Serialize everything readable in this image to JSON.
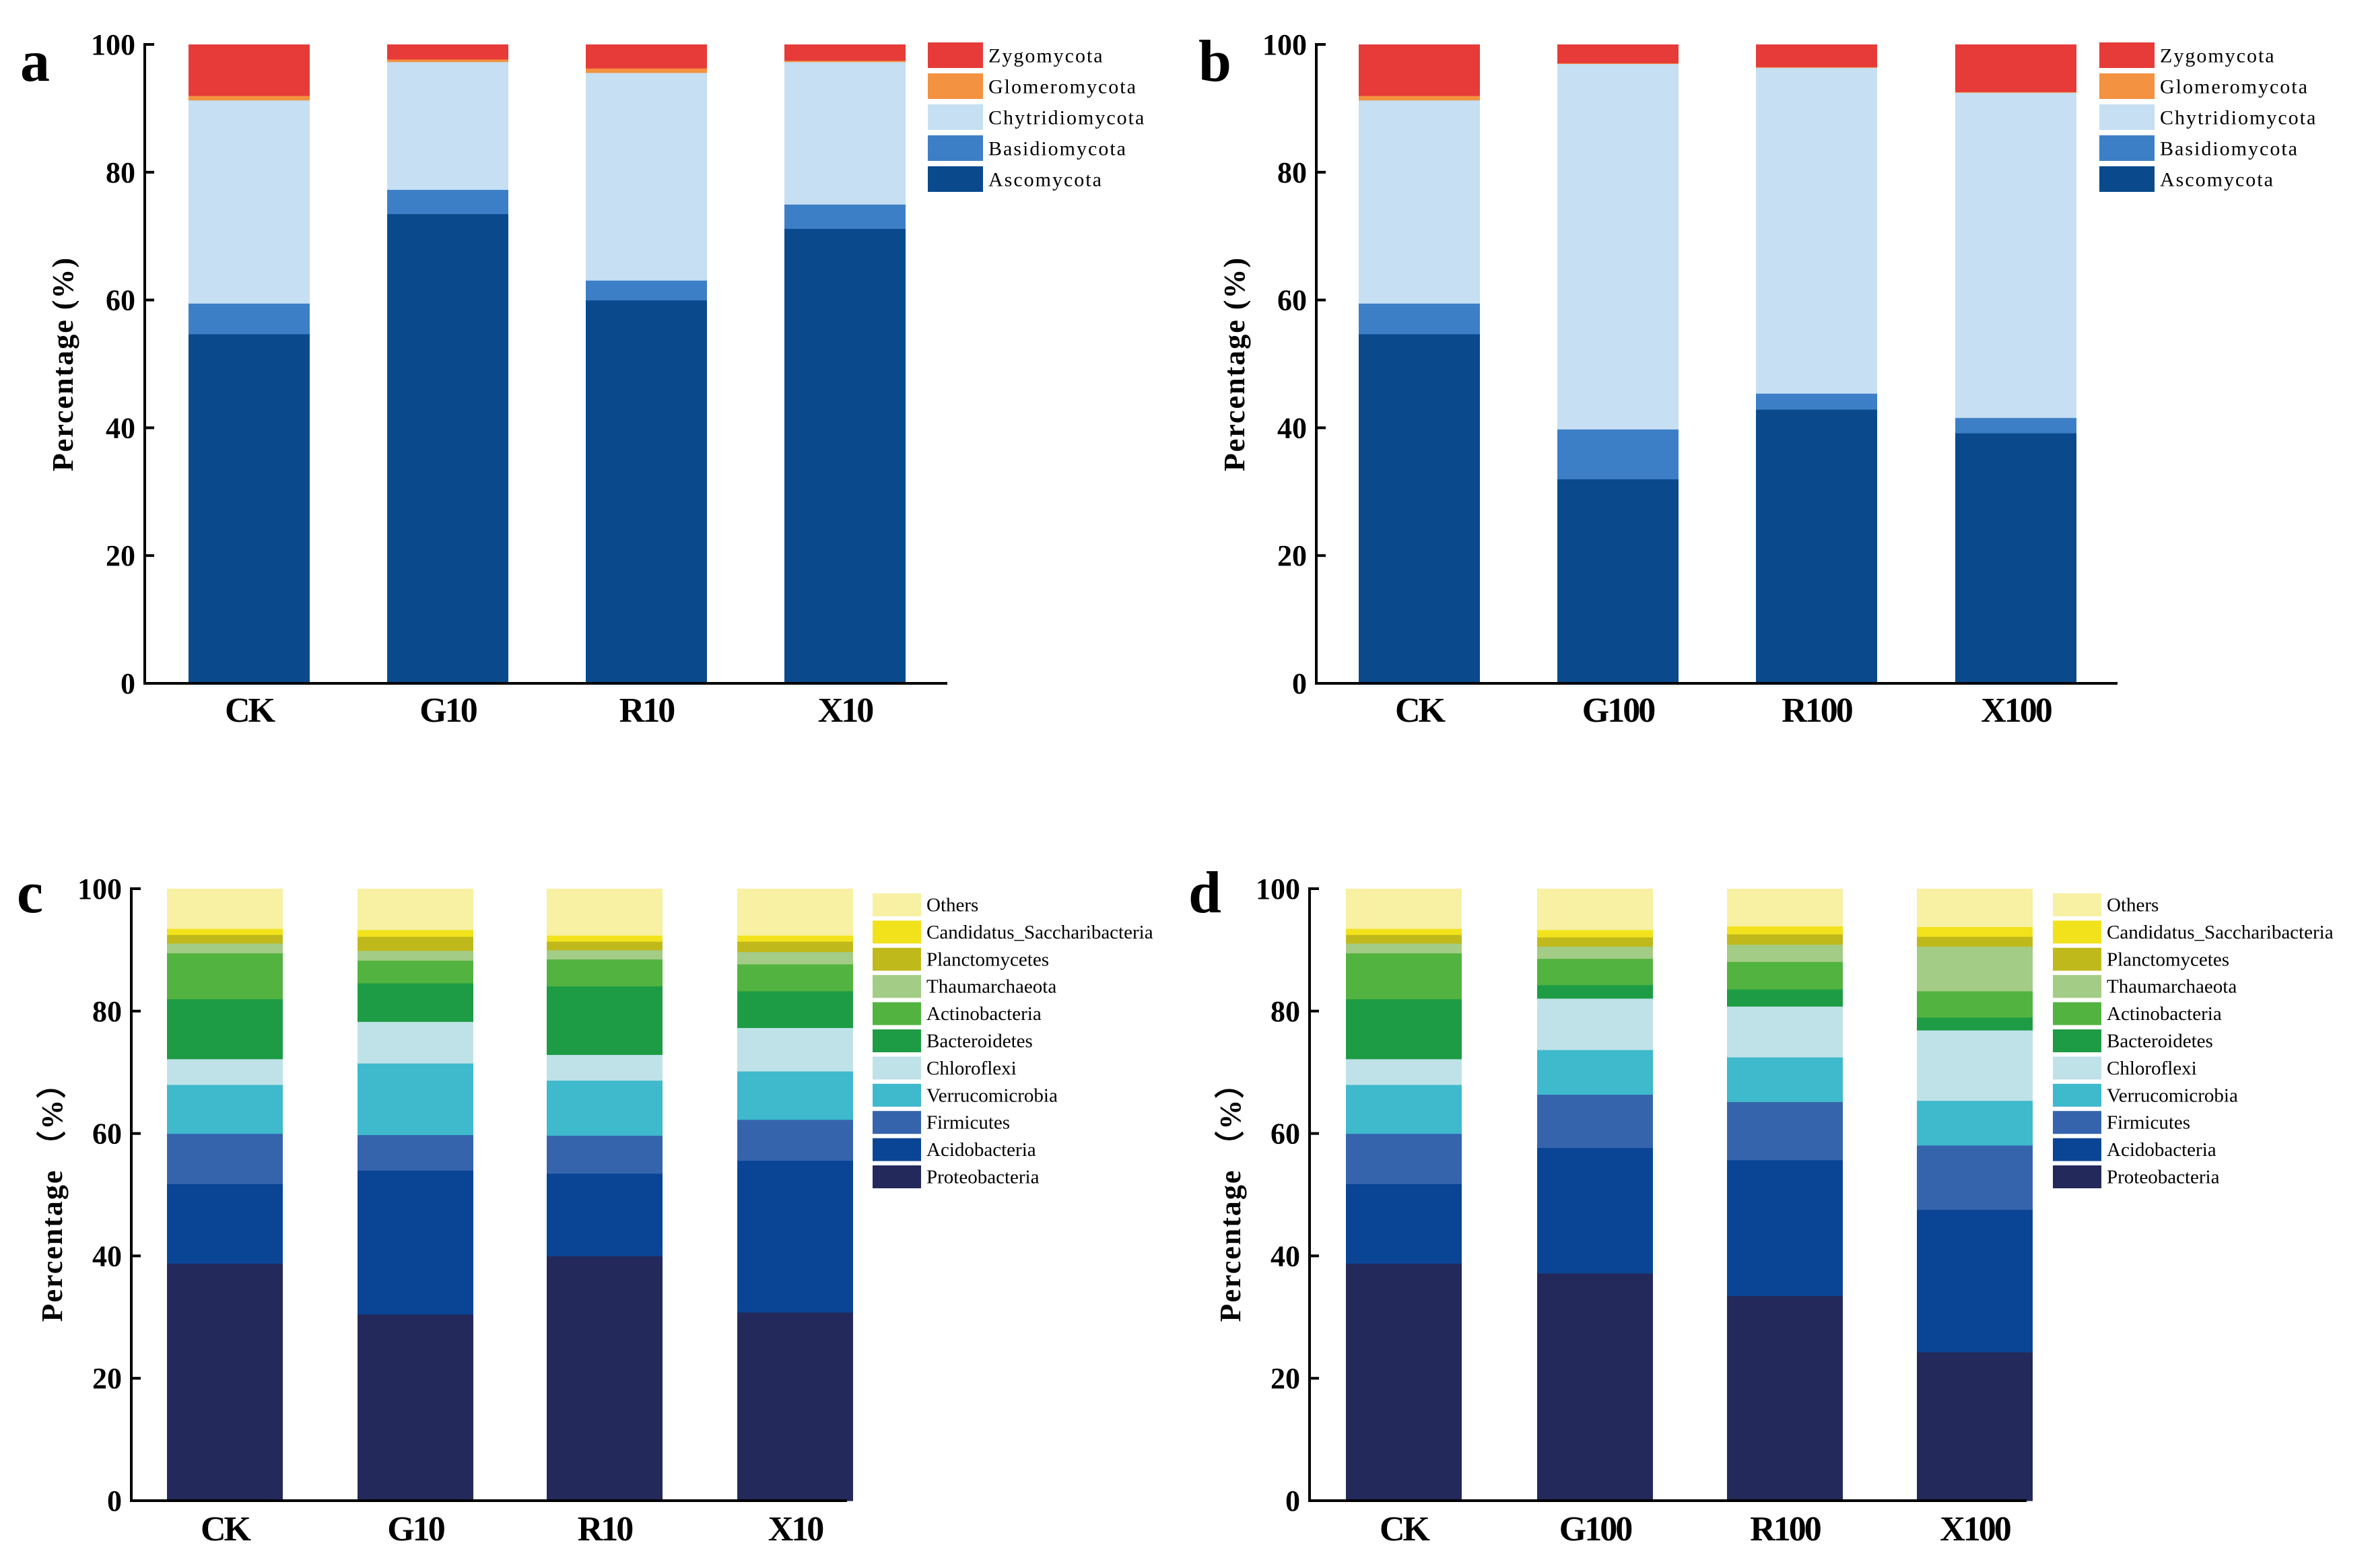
{
  "figure": {
    "colors": {
      "fungi": {
        "Ascomycota": "#0a4a8c",
        "Basidiomycota": "#3d7fc6",
        "Chytridiomycota": "#c6dff2",
        "Glomeromycota": "#f39240",
        "Zygomycota": "#e63b39"
      },
      "bacteria": {
        "Proteobacteria": "#23295a",
        "Acidobacteria": "#0a4595",
        "Firmicutes": "#3564ad",
        "Verrucomicrobia": "#3fb9cc",
        "Chloroflexi": "#bfe2e8",
        "Bacteroidetes": "#1d9c45",
        "Actinobacteria": "#53b340",
        "Thaumarchaeota": "#a3cc86",
        "Planctomycetes": "#c0b91c",
        "Candidatus_Saccharibacteria": "#f2e21c",
        "Others": "#f8f0a2"
      }
    }
  },
  "chart_data": [
    {
      "panel": "a",
      "type": "bar",
      "stacked": true,
      "ylabel": "Percentage (%)",
      "ylim": [
        0,
        100
      ],
      "yticks": [
        "0",
        "20",
        "40",
        "60",
        "80",
        "100"
      ],
      "categories": [
        "CK",
        "G10",
        "R10",
        "X10"
      ],
      "legend": [
        "Zygomycota",
        "Glomeromycota",
        "Chytridiomycota",
        "Basidiomycota",
        "Ascomycota"
      ],
      "series": [
        {
          "name": "Ascomycota",
          "values": [
            54.7,
            73.5,
            60.0,
            71.2
          ]
        },
        {
          "name": "Basidiomycota",
          "values": [
            4.8,
            3.8,
            3.1,
            3.8
          ]
        },
        {
          "name": "Chytridiomycota",
          "values": [
            31.8,
            20.0,
            32.5,
            22.3
          ]
        },
        {
          "name": "Glomeromycota",
          "values": [
            0.7,
            0.4,
            0.7,
            0.2
          ]
        },
        {
          "name": "Zygomycota",
          "values": [
            8.0,
            2.3,
            3.7,
            2.5
          ]
        }
      ]
    },
    {
      "panel": "b",
      "type": "bar",
      "stacked": true,
      "ylabel": "Percentage (%)",
      "ylim": [
        0,
        100
      ],
      "yticks": [
        "0",
        "20",
        "40",
        "60",
        "80",
        "100"
      ],
      "categories": [
        "CK",
        "G100",
        "R100",
        "X100"
      ],
      "legend": [
        "Zygomycota",
        "Glomeromycota",
        "Chytridiomycota",
        "Basidiomycota",
        "Ascomycota"
      ],
      "series": [
        {
          "name": "Ascomycota",
          "values": [
            54.7,
            32.0,
            42.9,
            39.2
          ]
        },
        {
          "name": "Basidiomycota",
          "values": [
            4.8,
            7.8,
            2.5,
            2.4
          ]
        },
        {
          "name": "Chytridiomycota",
          "values": [
            31.8,
            57.2,
            51.0,
            50.9
          ]
        },
        {
          "name": "Glomeromycota",
          "values": [
            0.7,
            0.1,
            0.1,
            0.1
          ]
        },
        {
          "name": "Zygomycota",
          "values": [
            8.0,
            2.9,
            3.5,
            7.4
          ]
        }
      ]
    },
    {
      "panel": "c",
      "type": "bar",
      "stacked": true,
      "ylabel": "Percentage （%）",
      "ylim": [
        0,
        100
      ],
      "yticks": [
        "0",
        "20",
        "40",
        "60",
        "80",
        "100"
      ],
      "categories": [
        "CK",
        "G10",
        "R10",
        "X10"
      ],
      "legend": [
        "Others",
        "Candidatus_Saccharibacteria",
        "Planctomycetes",
        "Thaumarchaeota",
        "Actinobacteria",
        "Bacteroidetes",
        "Chloroflexi",
        "Verrucomicrobia",
        "Firmicutes",
        "Acidobacteria",
        "Proteobacteria"
      ],
      "series": [
        {
          "name": "Proteobacteria",
          "values": [
            38.8,
            30.5,
            40.0,
            30.8
          ]
        },
        {
          "name": "Acidobacteria",
          "values": [
            13.0,
            23.5,
            13.5,
            24.8
          ]
        },
        {
          "name": "Firmicutes",
          "values": [
            8.2,
            5.8,
            6.2,
            6.7
          ]
        },
        {
          "name": "Verrucomicrobia",
          "values": [
            8.0,
            11.7,
            9.0,
            7.9
          ]
        },
        {
          "name": "Chloroflexi",
          "values": [
            4.2,
            6.8,
            4.2,
            7.1
          ]
        },
        {
          "name": "Bacteroidetes",
          "values": [
            9.8,
            6.3,
            11.2,
            6.0
          ]
        },
        {
          "name": "Actinobacteria",
          "values": [
            7.5,
            3.7,
            4.4,
            4.4
          ]
        },
        {
          "name": "Thaumarchaeota",
          "values": [
            1.6,
            1.6,
            1.5,
            2.0
          ]
        },
        {
          "name": "Planctomycetes",
          "values": [
            1.4,
            2.3,
            1.4,
            1.7
          ]
        },
        {
          "name": "Candidatus_Saccharibacteria",
          "values": [
            1.0,
            1.1,
            1.0,
            1.0
          ]
        },
        {
          "name": "Others",
          "values": [
            6.5,
            6.7,
            7.6,
            7.6
          ]
        }
      ]
    },
    {
      "panel": "d",
      "type": "bar",
      "stacked": true,
      "ylabel": "Percentage （%）",
      "ylim": [
        0,
        100
      ],
      "yticks": [
        "0",
        "20",
        "40",
        "60",
        "80",
        "100"
      ],
      "categories": [
        "CK",
        "G100",
        "R100",
        "X100"
      ],
      "legend": [
        "Others",
        "Candidatus_Saccharibacteria",
        "Planctomycetes",
        "Thaumarchaeota",
        "Actinobacteria",
        "Bacteroidetes",
        "Chloroflexi",
        "Verrucomicrobia",
        "Firmicutes",
        "Acidobacteria",
        "Proteobacteria"
      ],
      "series": [
        {
          "name": "Proteobacteria",
          "values": [
            38.8,
            37.2,
            33.5,
            24.3
          ]
        },
        {
          "name": "Acidobacteria",
          "values": [
            13.0,
            20.5,
            22.2,
            23.3
          ]
        },
        {
          "name": "Firmicutes",
          "values": [
            8.2,
            8.7,
            9.5,
            10.5
          ]
        },
        {
          "name": "Verrucomicrobia",
          "values": [
            8.0,
            7.3,
            7.3,
            7.3
          ]
        },
        {
          "name": "Chloroflexi",
          "values": [
            4.2,
            8.4,
            8.3,
            11.5
          ]
        },
        {
          "name": "Bacteroidetes",
          "values": [
            9.8,
            2.2,
            2.8,
            2.1
          ]
        },
        {
          "name": "Actinobacteria",
          "values": [
            7.5,
            4.3,
            4.5,
            4.3
          ]
        },
        {
          "name": "Thaumarchaeota",
          "values": [
            1.6,
            2.0,
            2.8,
            7.3
          ]
        },
        {
          "name": "Planctomycetes",
          "values": [
            1.4,
            1.5,
            1.7,
            1.6
          ]
        },
        {
          "name": "Candidatus_Saccharibacteria",
          "values": [
            1.0,
            1.2,
            1.3,
            1.6
          ]
        },
        {
          "name": "Others",
          "values": [
            6.5,
            6.7,
            6.1,
            6.2
          ]
        }
      ]
    }
  ]
}
